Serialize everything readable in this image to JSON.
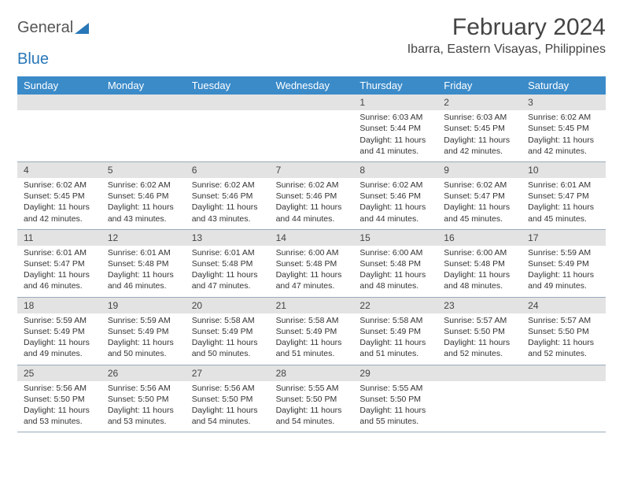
{
  "logo": {
    "text1": "General",
    "text2": "Blue",
    "icon_color": "#2877b8"
  },
  "title": "February 2024",
  "location": "Ibarra, Eastern Visayas, Philippines",
  "colors": {
    "header_bg": "#3b8bc9",
    "header_text": "#ffffff",
    "daynum_bg": "#e3e3e3",
    "border": "#99aabb",
    "text": "#333333"
  },
  "typography": {
    "title_fontsize": 30,
    "location_fontsize": 16,
    "dayheader_fontsize": 13,
    "daynum_fontsize": 12,
    "body_fontsize": 10.5
  },
  "day_names": [
    "Sunday",
    "Monday",
    "Tuesday",
    "Wednesday",
    "Thursday",
    "Friday",
    "Saturday"
  ],
  "weeks": [
    [
      {
        "blank": true
      },
      {
        "blank": true
      },
      {
        "blank": true
      },
      {
        "blank": true
      },
      {
        "day": "1",
        "sunrise": "Sunrise: 6:03 AM",
        "sunset": "Sunset: 5:44 PM",
        "daylight1": "Daylight: 11 hours",
        "daylight2": "and 41 minutes."
      },
      {
        "day": "2",
        "sunrise": "Sunrise: 6:03 AM",
        "sunset": "Sunset: 5:45 PM",
        "daylight1": "Daylight: 11 hours",
        "daylight2": "and 42 minutes."
      },
      {
        "day": "3",
        "sunrise": "Sunrise: 6:02 AM",
        "sunset": "Sunset: 5:45 PM",
        "daylight1": "Daylight: 11 hours",
        "daylight2": "and 42 minutes."
      }
    ],
    [
      {
        "day": "4",
        "sunrise": "Sunrise: 6:02 AM",
        "sunset": "Sunset: 5:45 PM",
        "daylight1": "Daylight: 11 hours",
        "daylight2": "and 42 minutes."
      },
      {
        "day": "5",
        "sunrise": "Sunrise: 6:02 AM",
        "sunset": "Sunset: 5:46 PM",
        "daylight1": "Daylight: 11 hours",
        "daylight2": "and 43 minutes."
      },
      {
        "day": "6",
        "sunrise": "Sunrise: 6:02 AM",
        "sunset": "Sunset: 5:46 PM",
        "daylight1": "Daylight: 11 hours",
        "daylight2": "and 43 minutes."
      },
      {
        "day": "7",
        "sunrise": "Sunrise: 6:02 AM",
        "sunset": "Sunset: 5:46 PM",
        "daylight1": "Daylight: 11 hours",
        "daylight2": "and 44 minutes."
      },
      {
        "day": "8",
        "sunrise": "Sunrise: 6:02 AM",
        "sunset": "Sunset: 5:46 PM",
        "daylight1": "Daylight: 11 hours",
        "daylight2": "and 44 minutes."
      },
      {
        "day": "9",
        "sunrise": "Sunrise: 6:02 AM",
        "sunset": "Sunset: 5:47 PM",
        "daylight1": "Daylight: 11 hours",
        "daylight2": "and 45 minutes."
      },
      {
        "day": "10",
        "sunrise": "Sunrise: 6:01 AM",
        "sunset": "Sunset: 5:47 PM",
        "daylight1": "Daylight: 11 hours",
        "daylight2": "and 45 minutes."
      }
    ],
    [
      {
        "day": "11",
        "sunrise": "Sunrise: 6:01 AM",
        "sunset": "Sunset: 5:47 PM",
        "daylight1": "Daylight: 11 hours",
        "daylight2": "and 46 minutes."
      },
      {
        "day": "12",
        "sunrise": "Sunrise: 6:01 AM",
        "sunset": "Sunset: 5:48 PM",
        "daylight1": "Daylight: 11 hours",
        "daylight2": "and 46 minutes."
      },
      {
        "day": "13",
        "sunrise": "Sunrise: 6:01 AM",
        "sunset": "Sunset: 5:48 PM",
        "daylight1": "Daylight: 11 hours",
        "daylight2": "and 47 minutes."
      },
      {
        "day": "14",
        "sunrise": "Sunrise: 6:00 AM",
        "sunset": "Sunset: 5:48 PM",
        "daylight1": "Daylight: 11 hours",
        "daylight2": "and 47 minutes."
      },
      {
        "day": "15",
        "sunrise": "Sunrise: 6:00 AM",
        "sunset": "Sunset: 5:48 PM",
        "daylight1": "Daylight: 11 hours",
        "daylight2": "and 48 minutes."
      },
      {
        "day": "16",
        "sunrise": "Sunrise: 6:00 AM",
        "sunset": "Sunset: 5:48 PM",
        "daylight1": "Daylight: 11 hours",
        "daylight2": "and 48 minutes."
      },
      {
        "day": "17",
        "sunrise": "Sunrise: 5:59 AM",
        "sunset": "Sunset: 5:49 PM",
        "daylight1": "Daylight: 11 hours",
        "daylight2": "and 49 minutes."
      }
    ],
    [
      {
        "day": "18",
        "sunrise": "Sunrise: 5:59 AM",
        "sunset": "Sunset: 5:49 PM",
        "daylight1": "Daylight: 11 hours",
        "daylight2": "and 49 minutes."
      },
      {
        "day": "19",
        "sunrise": "Sunrise: 5:59 AM",
        "sunset": "Sunset: 5:49 PM",
        "daylight1": "Daylight: 11 hours",
        "daylight2": "and 50 minutes."
      },
      {
        "day": "20",
        "sunrise": "Sunrise: 5:58 AM",
        "sunset": "Sunset: 5:49 PM",
        "daylight1": "Daylight: 11 hours",
        "daylight2": "and 50 minutes."
      },
      {
        "day": "21",
        "sunrise": "Sunrise: 5:58 AM",
        "sunset": "Sunset: 5:49 PM",
        "daylight1": "Daylight: 11 hours",
        "daylight2": "and 51 minutes."
      },
      {
        "day": "22",
        "sunrise": "Sunrise: 5:58 AM",
        "sunset": "Sunset: 5:49 PM",
        "daylight1": "Daylight: 11 hours",
        "daylight2": "and 51 minutes."
      },
      {
        "day": "23",
        "sunrise": "Sunrise: 5:57 AM",
        "sunset": "Sunset: 5:50 PM",
        "daylight1": "Daylight: 11 hours",
        "daylight2": "and 52 minutes."
      },
      {
        "day": "24",
        "sunrise": "Sunrise: 5:57 AM",
        "sunset": "Sunset: 5:50 PM",
        "daylight1": "Daylight: 11 hours",
        "daylight2": "and 52 minutes."
      }
    ],
    [
      {
        "day": "25",
        "sunrise": "Sunrise: 5:56 AM",
        "sunset": "Sunset: 5:50 PM",
        "daylight1": "Daylight: 11 hours",
        "daylight2": "and 53 minutes."
      },
      {
        "day": "26",
        "sunrise": "Sunrise: 5:56 AM",
        "sunset": "Sunset: 5:50 PM",
        "daylight1": "Daylight: 11 hours",
        "daylight2": "and 53 minutes."
      },
      {
        "day": "27",
        "sunrise": "Sunrise: 5:56 AM",
        "sunset": "Sunset: 5:50 PM",
        "daylight1": "Daylight: 11 hours",
        "daylight2": "and 54 minutes."
      },
      {
        "day": "28",
        "sunrise": "Sunrise: 5:55 AM",
        "sunset": "Sunset: 5:50 PM",
        "daylight1": "Daylight: 11 hours",
        "daylight2": "and 54 minutes."
      },
      {
        "day": "29",
        "sunrise": "Sunrise: 5:55 AM",
        "sunset": "Sunset: 5:50 PM",
        "daylight1": "Daylight: 11 hours",
        "daylight2": "and 55 minutes."
      },
      {
        "blank": true
      },
      {
        "blank": true
      }
    ]
  ]
}
